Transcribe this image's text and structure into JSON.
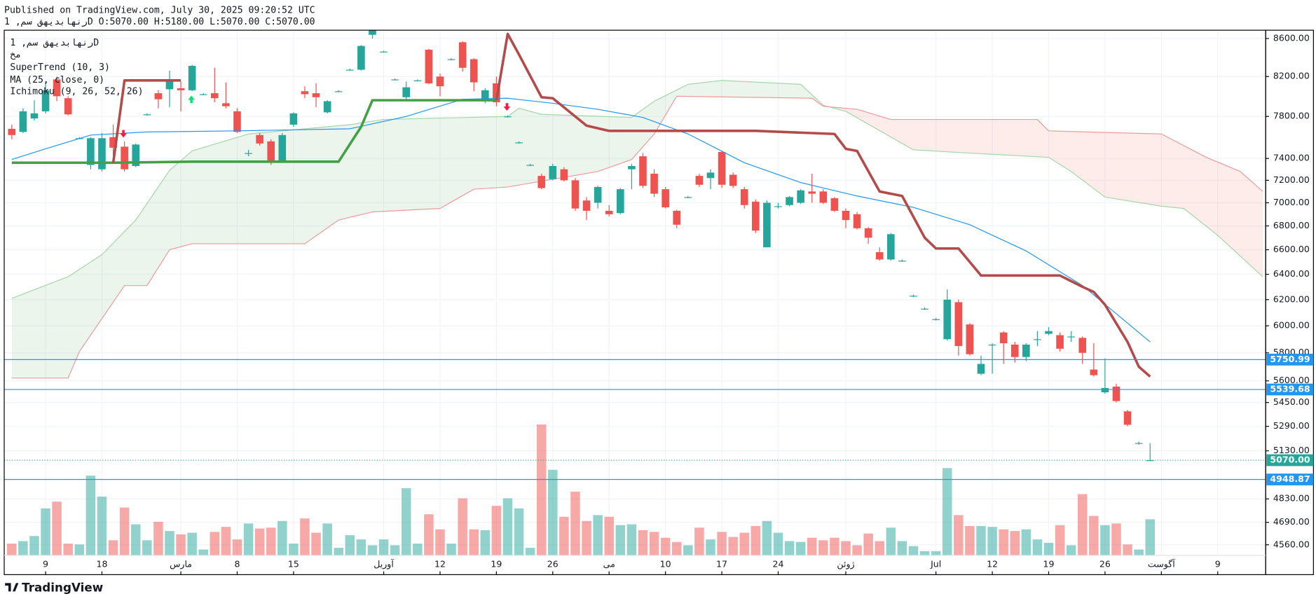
{
  "header": {
    "published": "Published on TradingView.com, July 30, 2025 09:20:52 UTC",
    "symbol_line": "رنهابدیهق سم, 1D O:5070.00 H:5180.00 L:5070.00 C:5070.00"
  },
  "legend": [
    "رنهابدیهق سم, 1D",
    "مخ",
    "SuperTrend (10, 3)",
    "MA (25, close, 0)",
    "Ichimoku (9, 26, 52, 26)"
  ],
  "footer": "TradingView",
  "chart_data": {
    "type": "candlestick",
    "log": true,
    "grid": true,
    "up_color": "#26a69a",
    "down_color": "#ef5350",
    "xlim": [
      -0.67,
      111.25
    ],
    "ylim": [
      4500,
      8690
    ],
    "vlim": [
      0,
      160
    ],
    "xticks": [
      {
        "value": 3,
        "label": "9"
      },
      {
        "value": 8,
        "label": "18"
      },
      {
        "value": 15,
        "label": "مارس"
      },
      {
        "value": 20,
        "label": "8"
      },
      {
        "value": 25,
        "label": "15"
      },
      {
        "value": 33,
        "label": "آوریل"
      },
      {
        "value": 38,
        "label": "12"
      },
      {
        "value": 43,
        "label": "19"
      },
      {
        "value": 48,
        "label": "26"
      },
      {
        "value": 53,
        "label": "می"
      },
      {
        "value": 58,
        "label": "10"
      },
      {
        "value": 63,
        "label": "17"
      },
      {
        "value": 68,
        "label": "24"
      },
      {
        "value": 74,
        "label": "ژوئن"
      },
      {
        "value": 82,
        "label": "Jul"
      },
      {
        "value": 87,
        "label": "12"
      },
      {
        "value": 92,
        "label": "19"
      },
      {
        "value": 97,
        "label": "26"
      },
      {
        "value": 102,
        "label": "آگوست"
      },
      {
        "value": 107,
        "label": "9"
      }
    ],
    "yticks": [
      {
        "value": 8600,
        "label": "8600.00"
      },
      {
        "value": 8200,
        "label": "8200.00"
      },
      {
        "value": 7800,
        "label": "7800.00"
      },
      {
        "value": 7400,
        "label": "7400.00"
      },
      {
        "value": 7200,
        "label": "7200.00"
      },
      {
        "value": 7000,
        "label": "7000.00"
      },
      {
        "value": 6800,
        "label": "6800.00"
      },
      {
        "value": 6600,
        "label": "6600.00"
      },
      {
        "value": 6400,
        "label": "6400.00"
      },
      {
        "value": 6200,
        "label": "6200.00"
      },
      {
        "value": 6000,
        "label": "6000.00"
      },
      {
        "value": 5800,
        "label": "5800.00"
      },
      {
        "value": 5600,
        "label": "5600.00"
      },
      {
        "value": 5450,
        "label": "5450.00"
      },
      {
        "value": 5290,
        "label": "5290.00"
      },
      {
        "value": 5130,
        "label": "5130.00"
      },
      {
        "value": 4830,
        "label": "4830.00"
      },
      {
        "value": 4690,
        "label": "4690.00"
      },
      {
        "value": 4560,
        "label": "4560.00"
      }
    ],
    "open": [
      7680,
      7650,
      7780,
      7850,
      8170,
      7980,
      7590,
      7340,
      7300,
      7600,
      7510,
      7330,
      7820,
      8030,
      8070,
      8080,
      8060,
      8020,
      8030,
      7930,
      7850,
      7450,
      7620,
      7560,
      7370,
      7720,
      8050,
      8030,
      7840,
      8050,
      8270,
      8270,
      8640,
      8460,
      8170,
      7990,
      8160,
      8480,
      8200,
      8380,
      8560,
      8380,
      7960,
      8130,
      7800,
      7550,
      7340,
      7240,
      7210,
      7300,
      7200,
      7020,
      7000,
      6930,
      6910,
      7300,
      7420,
      7260,
      7120,
      6930,
      7050,
      7240,
      7220,
      7460,
      7250,
      7120,
      7010,
      6620,
      6970,
      6980,
      7000,
      7100,
      7100,
      7040,
      6930,
      6900,
      6780,
      6580,
      6520,
      6510,
      6230,
      6130,
      6050,
      5900,
      6180,
      6010,
      5650,
      5860,
      5950,
      5860,
      5770,
      5900,
      5940,
      5930,
      5920,
      5910,
      5680,
      5520,
      5560,
      5390,
      5180,
      5070
    ],
    "high": [
      7720,
      7880,
      7960,
      8150,
      8200,
      8000,
      7600,
      7600,
      7640,
      7720,
      7560,
      7540,
      7830,
      8060,
      8260,
      8150,
      8320,
      8030,
      8290,
      8140,
      7880,
      7480,
      7640,
      7580,
      7640,
      7840,
      8100,
      8130,
      7960,
      8060,
      8280,
      8530,
      8700,
      8470,
      8180,
      8150,
      8170,
      8490,
      8230,
      8390,
      8570,
      8390,
      8080,
      8200,
      7810,
      7560,
      7350,
      7260,
      7350,
      7320,
      7220,
      7050,
      7150,
      6980,
      7130,
      7350,
      7450,
      7300,
      7140,
      6940,
      7060,
      7260,
      7300,
      7470,
      7270,
      7140,
      7030,
      7020,
      7000,
      7060,
      7120,
      7260,
      7120,
      7050,
      6950,
      6920,
      6790,
      6620,
      6740,
      6520,
      6240,
      6140,
      6060,
      6280,
      6200,
      6020,
      5780,
      5870,
      5960,
      5880,
      5870,
      5960,
      5990,
      5950,
      5960,
      5920,
      5870,
      5760,
      5580,
      5400,
      5190,
      5180
    ],
    "low": [
      7580,
      7640,
      7760,
      7830,
      7950,
      7810,
      7580,
      7300,
      7280,
      7420,
      7280,
      7320,
      7810,
      7880,
      7890,
      7850,
      8050,
      8010,
      7940,
      7880,
      7640,
      7420,
      7520,
      7340,
      7360,
      7700,
      7980,
      7890,
      7830,
      8040,
      8260,
      8260,
      8600,
      8450,
      8160,
      7970,
      8150,
      8120,
      8000,
      8370,
      8250,
      8050,
      7930,
      7900,
      7790,
      7540,
      7330,
      7120,
      7200,
      7190,
      6930,
      6850,
      6950,
      6880,
      6900,
      7120,
      7130,
      7050,
      6950,
      6780,
      7040,
      7140,
      7120,
      7130,
      7130,
      6950,
      6740,
      6620,
      6950,
      6970,
      6990,
      7000,
      6990,
      6920,
      6780,
      6770,
      6650,
      6510,
      6510,
      6500,
      6220,
      6120,
      6040,
      5890,
      5780,
      5780,
      5640,
      5650,
      5720,
      5730,
      5740,
      5850,
      5930,
      5810,
      5880,
      5720,
      5630,
      5510,
      5450,
      5290,
      5170,
      5070
    ],
    "close": [
      7620,
      7850,
      7830,
      8060,
      8000,
      7820,
      7590,
      7590,
      7590,
      7500,
      7300,
      7530,
      7820,
      7970,
      8170,
      8060,
      8310,
      8020,
      7980,
      7900,
      7650,
      7450,
      7540,
      7360,
      7620,
      7830,
      8020,
      7990,
      7950,
      8050,
      8270,
      8520,
      8690,
      8460,
      8170,
      8090,
      8160,
      8130,
      8100,
      8380,
      8290,
      8140,
      8060,
      7940,
      7800,
      7550,
      7340,
      7130,
      7330,
      7200,
      6950,
      6930,
      7140,
      6900,
      7120,
      7330,
      7150,
      7080,
      6960,
      6810,
      7050,
      7160,
      7270,
      7160,
      7150,
      6980,
      6760,
      7000,
      6970,
      7050,
      7110,
      7080,
      7000,
      6930,
      6850,
      6780,
      6700,
      6520,
      6730,
      6510,
      6230,
      6130,
      6050,
      6200,
      5850,
      5790,
      5720,
      5860,
      5870,
      5770,
      5860,
      5900,
      5960,
      5830,
      5920,
      5800,
      5640,
      5550,
      5460,
      5300,
      5180,
      5070
    ],
    "volume": [
      14,
      17,
      23,
      56,
      64,
      14,
      13,
      95,
      70,
      18,
      57,
      37,
      18,
      40,
      29,
      25,
      27,
      7,
      28,
      34,
      19,
      38,
      32,
      33,
      41,
      14,
      44,
      27,
      38,
      9,
      24,
      19,
      12,
      19,
      12,
      80,
      14,
      49,
      31,
      14,
      68,
      31,
      30,
      59,
      68,
      56,
      9,
      156,
      102,
      46,
      76,
      41,
      48,
      46,
      36,
      37,
      30,
      28,
      21,
      16,
      12,
      33,
      19,
      28,
      22,
      27,
      35,
      41,
      27,
      17,
      16,
      21,
      18,
      21,
      17,
      12,
      26,
      17,
      33,
      17,
      11,
      5,
      5,
      104,
      48,
      35,
      35,
      34,
      31,
      29,
      31,
      19,
      15,
      36,
      12,
      73,
      47,
      36,
      38,
      13,
      7,
      43
    ],
    "ma": {
      "color": "#2196f3",
      "x": [
        0,
        3,
        7,
        12,
        20,
        30,
        35,
        40,
        44,
        48,
        52,
        56,
        60,
        65,
        70,
        75,
        80,
        85,
        90,
        95,
        101
      ],
      "values": [
        7390,
        7490,
        7620,
        7650,
        7660,
        7680,
        7800,
        7970,
        7980,
        7930,
        7870,
        7790,
        7630,
        7360,
        7180,
        7060,
        6960,
        6810,
        6590,
        6310,
        5880
      ]
    },
    "supertrend_up": {
      "color": "#43a047",
      "x": [
        0,
        9,
        16,
        29,
        31,
        32,
        43
      ],
      "values": [
        7360,
        7360,
        7370,
        7370,
        7700,
        7960,
        7960
      ]
    },
    "supertrend_down": {
      "color": "#b24b49",
      "x": [
        9,
        10,
        15,
        30,
        43,
        44,
        45,
        47,
        48,
        51,
        53,
        66,
        73,
        74,
        75,
        77,
        79,
        81,
        82,
        84,
        86,
        93,
        95,
        96,
        97,
        99,
        100,
        101
      ],
      "values": [
        7360,
        8160,
        8160,
        null,
        7960,
        8650,
        8430,
        7990,
        7980,
        7710,
        7660,
        7660,
        7630,
        7490,
        7470,
        7100,
        7060,
        6700,
        6610,
        6610,
        6390,
        6390,
        6300,
        6260,
        6160,
        5880,
        5700,
        5630
      ]
    },
    "ichimoku": {
      "up_fill": "rgba(67,160,71,0.10)",
      "down_fill": "rgba(244,67,54,0.10)",
      "span_a": {
        "color": "#a5d6a7",
        "x": [
          0,
          5,
          8,
          11,
          14,
          16,
          21,
          30,
          33,
          44,
          45,
          47,
          55,
          57,
          60,
          63,
          70,
          72,
          74,
          80,
          85,
          92,
          94,
          97,
          102,
          104,
          107,
          111
        ],
        "values": [
          6210,
          6380,
          6560,
          6850,
          7290,
          7470,
          7630,
          7720,
          7770,
          7800,
          7880,
          7820,
          7790,
          7950,
          8120,
          8160,
          8120,
          7910,
          7850,
          7480,
          7450,
          7410,
          7280,
          7050,
          6970,
          6950,
          6720,
          6380
        ]
      },
      "span_b": {
        "color": "#ef9a9a",
        "x": [
          0,
          5,
          6,
          10,
          12,
          14,
          16,
          26,
          29,
          32,
          38,
          41,
          44,
          52,
          55,
          57,
          59,
          71,
          72,
          75,
          78,
          91,
          92,
          102,
          106,
          109,
          111
        ],
        "values": [
          5620,
          5620,
          5810,
          6310,
          6310,
          6600,
          6650,
          6650,
          6850,
          6920,
          6950,
          7120,
          7140,
          7280,
          7390,
          7630,
          8000,
          7980,
          7900,
          7870,
          7770,
          7770,
          7660,
          7630,
          7410,
          7280,
          7100
        ]
      }
    },
    "price_lines": [
      {
        "value": 5750.99,
        "color": "#2196f3"
      },
      {
        "value": 5539.68,
        "color": "#2196f3"
      },
      {
        "value": 4948.87,
        "color": "#2196f3"
      }
    ],
    "last_price": {
      "value": 5070,
      "label": "5070.00",
      "color": "#26a69a"
    }
  }
}
